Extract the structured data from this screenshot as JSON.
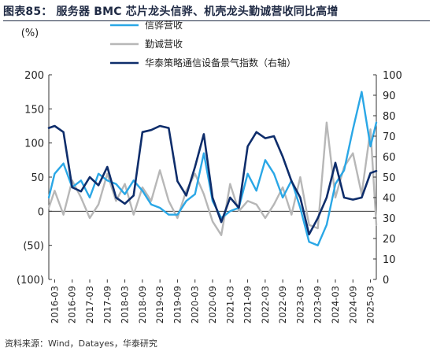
{
  "figure": {
    "title": "图表85：  服务器 BMC 芯片龙头信骅、机壳龙头勤诚营收同比高增",
    "source": "资料来源：Wind，Datayes，华泰研究"
  },
  "colors": {
    "series1": "#2aa7e6",
    "series2": "#b7b7b7",
    "series3": "#0e2d6b",
    "title": "#1f2a44"
  },
  "chart_data": {
    "type": "line",
    "ylabel": "(%)",
    "ylim": [
      -100,
      200
    ],
    "y_ticks": [
      "200",
      "150",
      "100",
      "50",
      "0",
      "(50)",
      "(100)"
    ],
    "y2lim": [
      0,
      100
    ],
    "y2_ticks": [
      "100",
      "90",
      "80",
      "70",
      "60",
      "50",
      "40",
      "30",
      "20",
      "10",
      "0"
    ],
    "x_ticks": [
      "2016-03",
      "2016-09",
      "2017-03",
      "2017-09",
      "2018-03",
      "2018-09",
      "2019-03",
      "2019-09",
      "2020-03",
      "2020-09",
      "2021-03",
      "2021-09",
      "2022-03",
      "2022-09",
      "2023-03",
      "2023-09",
      "2024-03",
      "2024-09",
      "2025-03"
    ],
    "legend_position": "top-right",
    "grid": false,
    "series": [
      {
        "name": "信骅营收",
        "axis": "left",
        "x": [
          "2016-01",
          "2016-03",
          "2016-06",
          "2016-09",
          "2016-12",
          "2017-03",
          "2017-06",
          "2017-09",
          "2017-12",
          "2018-03",
          "2018-06",
          "2018-09",
          "2018-12",
          "2019-03",
          "2019-06",
          "2019-09",
          "2019-12",
          "2020-03",
          "2020-06",
          "2020-09",
          "2020-12",
          "2021-03",
          "2021-06",
          "2021-09",
          "2021-12",
          "2022-03",
          "2022-06",
          "2022-09",
          "2022-12",
          "2023-03",
          "2023-06",
          "2023-09",
          "2023-12",
          "2024-03",
          "2024-06",
          "2024-09",
          "2024-12",
          "2025-03",
          "2025-05"
        ],
        "values": [
          20,
          55,
          70,
          35,
          45,
          20,
          55,
          45,
          40,
          25,
          45,
          30,
          10,
          5,
          -5,
          -5,
          15,
          25,
          85,
          15,
          -10,
          0,
          5,
          55,
          30,
          75,
          55,
          20,
          45,
          5,
          -45,
          -50,
          -20,
          40,
          60,
          120,
          175,
          95,
          130
        ]
      },
      {
        "name": "勤诚营收",
        "axis": "left",
        "x": [
          "2016-01",
          "2016-03",
          "2016-06",
          "2016-09",
          "2016-12",
          "2017-03",
          "2017-06",
          "2017-09",
          "2017-12",
          "2018-03",
          "2018-06",
          "2018-09",
          "2018-12",
          "2019-03",
          "2019-06",
          "2019-09",
          "2019-12",
          "2020-03",
          "2020-06",
          "2020-09",
          "2020-12",
          "2021-03",
          "2021-06",
          "2021-09",
          "2021-12",
          "2022-03",
          "2022-06",
          "2022-09",
          "2022-12",
          "2023-03",
          "2023-06",
          "2023-09",
          "2023-12",
          "2024-03",
          "2024-06",
          "2024-09",
          "2024-12",
          "2025-03",
          "2025-05"
        ],
        "values": [
          5,
          30,
          -5,
          45,
          20,
          -10,
          10,
          55,
          15,
          40,
          -5,
          35,
          15,
          60,
          15,
          -10,
          30,
          55,
          25,
          -15,
          -35,
          40,
          0,
          15,
          10,
          -10,
          10,
          35,
          -5,
          50,
          -20,
          -25,
          130,
          20,
          65,
          85,
          25,
          120,
          -20
        ]
      },
      {
        "name": "华泰策略通信设备景气指数（右轴）",
        "axis": "right",
        "x": [
          "2016-01",
          "2016-03",
          "2016-06",
          "2016-09",
          "2016-12",
          "2017-03",
          "2017-06",
          "2017-09",
          "2017-12",
          "2018-03",
          "2018-06",
          "2018-09",
          "2018-12",
          "2019-03",
          "2019-06",
          "2019-09",
          "2019-12",
          "2020-03",
          "2020-06",
          "2020-09",
          "2020-12",
          "2021-03",
          "2021-06",
          "2021-09",
          "2021-12",
          "2022-03",
          "2022-06",
          "2022-09",
          "2022-12",
          "2023-03",
          "2023-06",
          "2023-09",
          "2023-12",
          "2024-03",
          "2024-06",
          "2024-09",
          "2024-12",
          "2025-03",
          "2025-05"
        ],
        "values": [
          74,
          75,
          72,
          45,
          43,
          50,
          46,
          55,
          40,
          37,
          41,
          72,
          73,
          75,
          74,
          48,
          41,
          55,
          71,
          40,
          28,
          40,
          35,
          65,
          72,
          69,
          70,
          60,
          48,
          40,
          22,
          30,
          40,
          57,
          40,
          39,
          40,
          52,
          53
        ]
      }
    ]
  }
}
